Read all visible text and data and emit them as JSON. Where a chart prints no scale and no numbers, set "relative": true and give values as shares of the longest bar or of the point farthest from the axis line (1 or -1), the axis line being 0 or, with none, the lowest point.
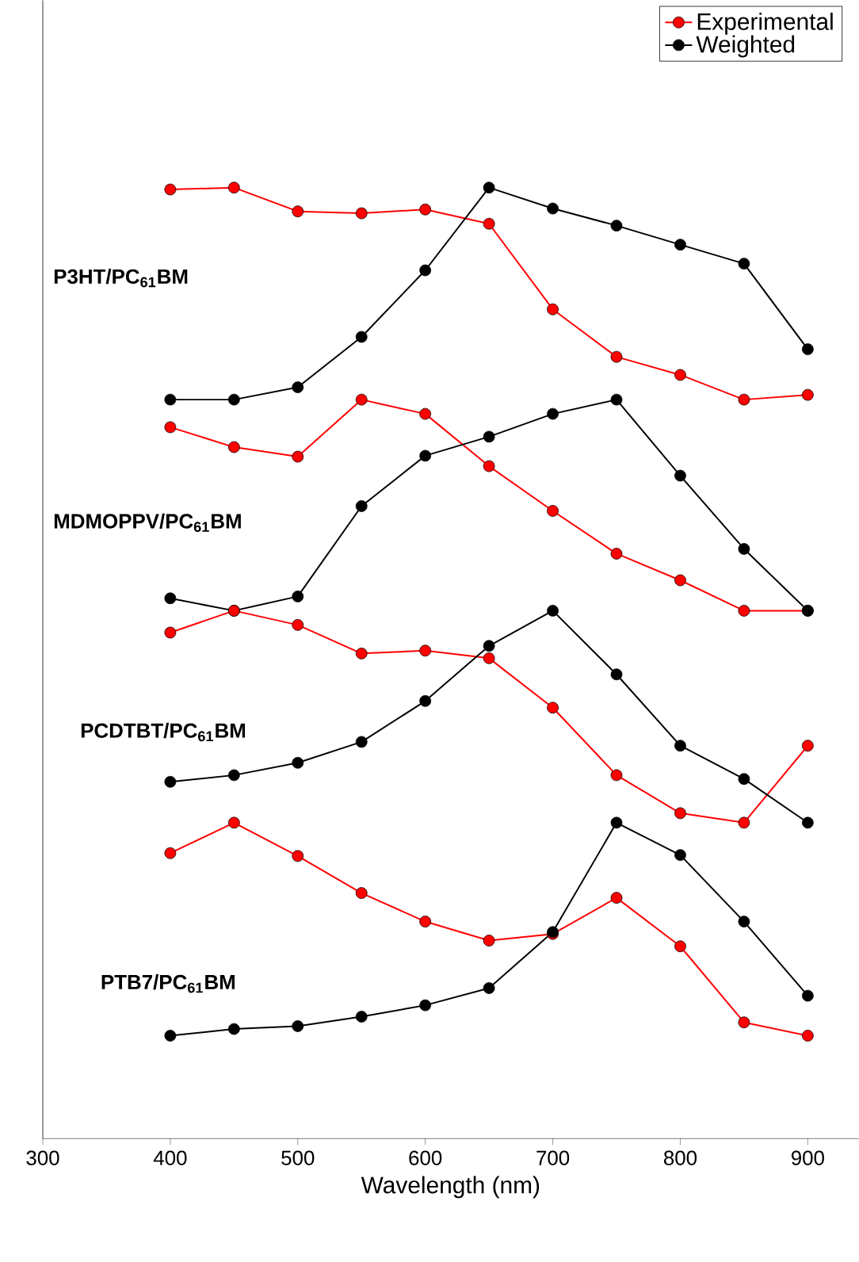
{
  "chart_data": {
    "type": "line",
    "relative": true,
    "xlabel": "Wavelength (nm)",
    "x": [
      400,
      450,
      500,
      550,
      600,
      650,
      700,
      750,
      800,
      850,
      900
    ],
    "xlim": [
      300,
      940
    ],
    "xticks": [
      300,
      400,
      500,
      600,
      700,
      800,
      900
    ],
    "marker": "circle",
    "legend": "top right",
    "grid": false,
    "series": [
      {
        "name": "Experimental",
        "color": "#ff0000",
        "values": [
          0.998,
          1.0,
          0.975,
          0.973,
          0.977,
          0.962,
          0.872,
          0.822,
          0.803,
          0.777,
          0.782
        ]
      },
      {
        "name": "Weighted",
        "color": "#000000",
        "values": [
          0.777,
          0.777,
          0.79,
          0.843,
          0.913,
          1.0,
          0.978,
          0.96,
          0.94,
          0.92,
          0.83
        ]
      },
      {
        "color": "#ff0000",
        "values": [
          0.748,
          0.727,
          0.717,
          0.777,
          0.762,
          0.707,
          0.66,
          0.615,
          0.587,
          0.555,
          0.555
        ]
      },
      {
        "color": "#000000",
        "values": [
          0.568,
          0.555,
          0.57,
          0.665,
          0.718,
          0.738,
          0.762,
          0.777,
          0.697,
          0.62,
          0.555
        ]
      },
      {
        "color": "#ff0000",
        "values": [
          0.532,
          0.555,
          0.54,
          0.51,
          0.513,
          0.505,
          0.453,
          0.382,
          0.342,
          0.332,
          0.413
        ]
      },
      {
        "color": "#000000",
        "values": [
          0.375,
          0.382,
          0.395,
          0.417,
          0.46,
          0.518,
          0.555,
          0.488,
          0.413,
          0.378,
          0.332
        ]
      },
      {
        "color": "#ff0000",
        "values": [
          0.3,
          0.332,
          0.297,
          0.258,
          0.228,
          0.208,
          0.215,
          0.253,
          0.202,
          0.122,
          0.108
        ]
      },
      {
        "color": "#000000",
        "values": [
          0.108,
          0.115,
          0.118,
          0.128,
          0.14,
          0.158,
          0.217,
          0.332,
          0.298,
          0.228,
          0.15
        ]
      }
    ],
    "annotations": [
      "P3HT/PC$_{61}$BM",
      "MDMOPPV/PC$_{61}$BM",
      "PCDTBT/PC$_{61}$BM",
      "PTB7/PC$_{61}$BM"
    ]
  }
}
